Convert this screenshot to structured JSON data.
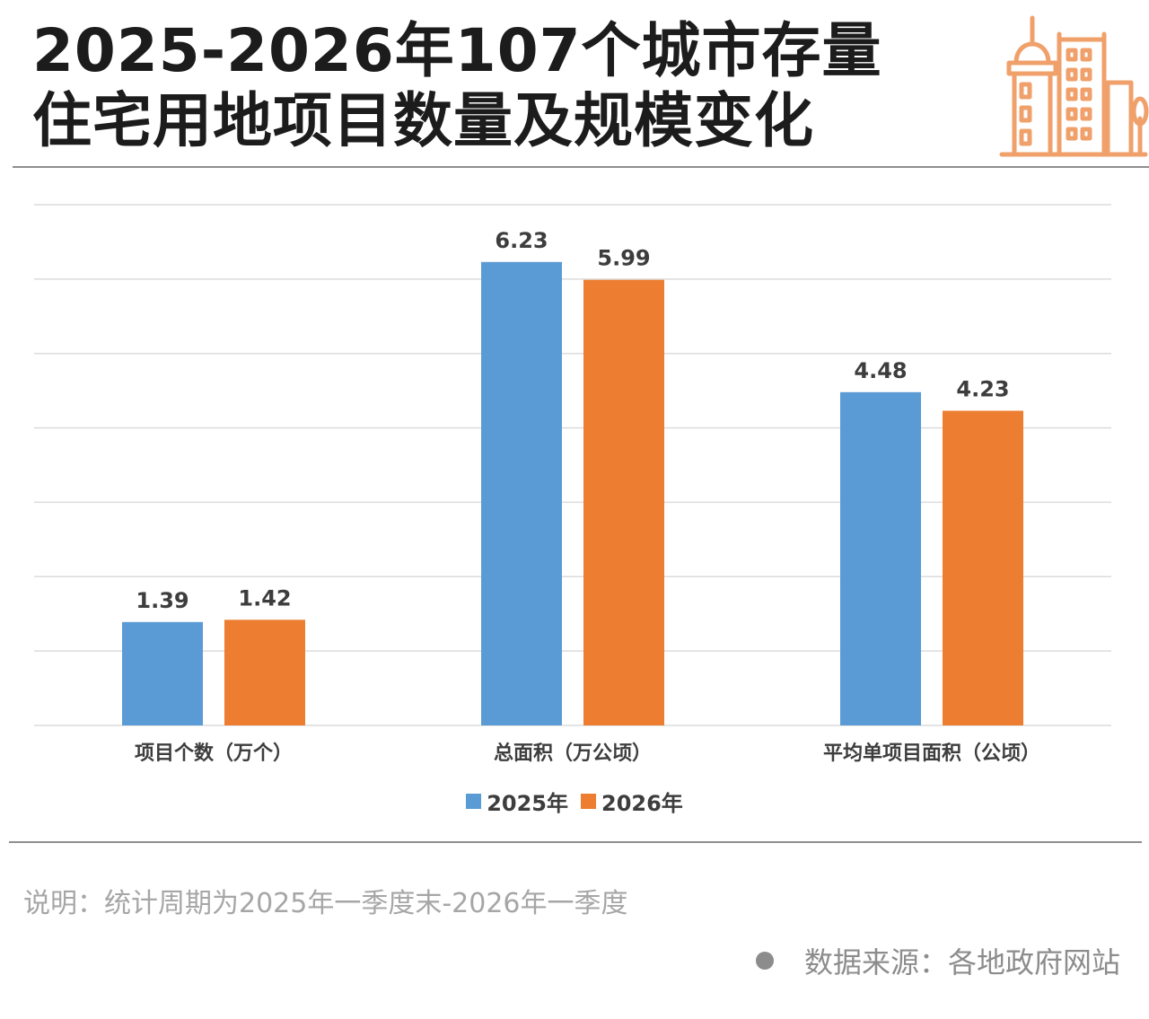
{
  "title_lines": [
    "2025-2026年107个城市存量",
    "住宅用地项目数量及规模变化"
  ],
  "chart_data": {
    "type": "bar",
    "categories": [
      "项目个数（万个）",
      "总面积（万公顷）",
      "平均单项目面积（公顷）"
    ],
    "series": [
      {
        "name": "2025年",
        "values": [
          1.39,
          6.23,
          4.48
        ]
      },
      {
        "name": "2026年",
        "values": [
          1.42,
          5.99,
          4.23
        ]
      }
    ],
    "ylim": [
      0,
      7
    ],
    "grid": true,
    "legend_position": "bottom",
    "colors": [
      "#5b9bd5",
      "#ed7d31"
    ],
    "grid_color": "#dcdcdc"
  },
  "note": "说明：统计周期为2025年一季度末-2026年一季度",
  "source": "数据来源：各地政府网站",
  "colors": {
    "logo": "#f0a06a",
    "title": "#1c1c1c"
  }
}
